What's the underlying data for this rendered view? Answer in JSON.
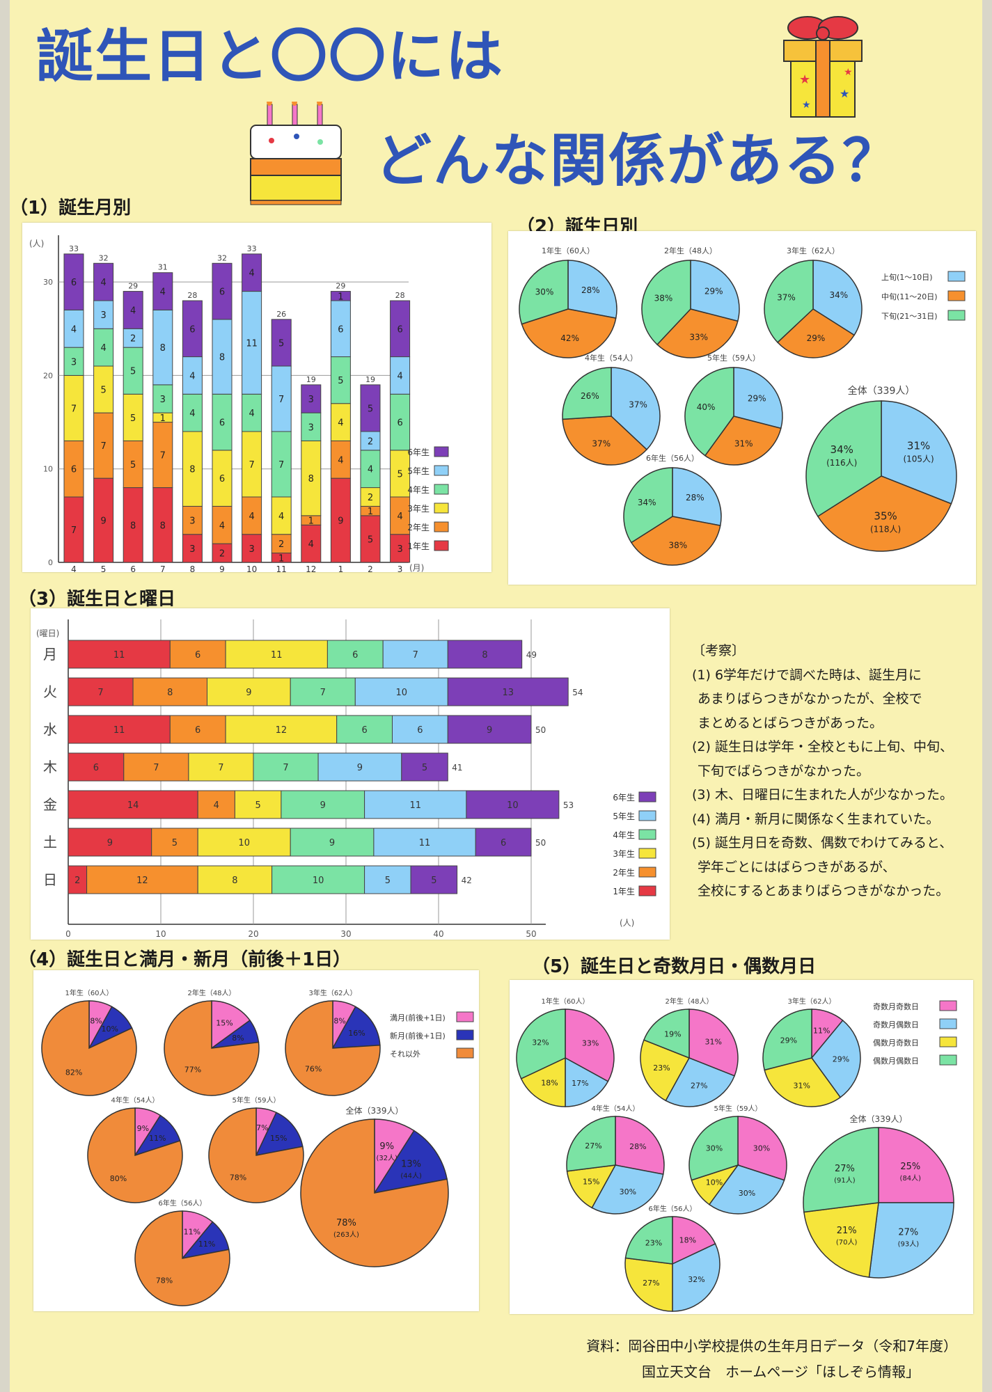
{
  "title": {
    "line1": "誕生日と〇〇には",
    "line2": "どんな関係がある？"
  },
  "colors": {
    "g1": "#e53944",
    "g2": "#f6902e",
    "g3": "#f6e53b",
    "g4": "#7be3a4",
    "g5": "#8fd0f7",
    "g6": "#7d3fb7",
    "early": "#8fd0f7",
    "mid": "#f6902e",
    "late": "#7be3a4",
    "fullmoon": "#f576c8",
    "newmoon": "#2a34b8",
    "other": "#f08b3a",
    "oddodd": "#f576c8",
    "oddeven": "#8fd0f7",
    "evenodd": "#f6e53b",
    "eveneven": "#7be3a4"
  },
  "sections": {
    "s1": "（1）誕生月別",
    "s2": "（2）誕生日別",
    "s3": "（3）誕生日と曜日",
    "s4": "（4）誕生日と満月・新月（前後＋1日）",
    "s5": "（5）誕生日と奇数月日・偶数月日"
  },
  "chart_data": [
    {
      "id": "month",
      "type": "bar",
      "stacked": true,
      "ylabel": "(人)",
      "xunit": "(月)",
      "ylim": [
        0,
        35
      ],
      "yticks": [
        0,
        10,
        20,
        30
      ],
      "categories": [
        "4",
        "5",
        "6",
        "7",
        "8",
        "9",
        "10",
        "11",
        "12",
        "1",
        "2",
        "3"
      ],
      "series": [
        {
          "name": "1年生",
          "values": [
            7,
            9,
            8,
            8,
            3,
            2,
            3,
            1,
            4,
            9,
            5,
            3
          ]
        },
        {
          "name": "2年生",
          "values": [
            6,
            7,
            5,
            7,
            3,
            4,
            4,
            2,
            1,
            4,
            1,
            4
          ]
        },
        {
          "name": "3年生",
          "values": [
            7,
            5,
            5,
            1,
            8,
            6,
            7,
            4,
            8,
            4,
            2,
            5
          ]
        },
        {
          "name": "4年生",
          "values": [
            3,
            4,
            5,
            3,
            4,
            6,
            4,
            7,
            3,
            5,
            4,
            6
          ]
        },
        {
          "name": "5年生",
          "values": [
            4,
            3,
            2,
            8,
            4,
            8,
            11,
            7,
            0,
            6,
            2,
            4
          ]
        },
        {
          "name": "6年生",
          "values": [
            6,
            4,
            4,
            4,
            6,
            6,
            4,
            5,
            3,
            1,
            5,
            6
          ]
        }
      ],
      "totals": [
        33,
        32,
        29,
        31,
        28,
        32,
        33,
        26,
        19,
        29,
        19,
        28
      ],
      "legend": "right"
    },
    {
      "id": "period",
      "type": "pie",
      "legend": [
        "上旬(1〜10日)",
        "中旬(11〜20日)",
        "下旬(21〜31日)"
      ],
      "pies": [
        {
          "title": "1年生（60人）",
          "values": [
            28,
            42,
            30
          ],
          "labels": [
            "28%",
            "42%",
            "30%"
          ]
        },
        {
          "title": "2年生（48人）",
          "values": [
            29,
            33,
            38
          ],
          "labels": [
            "29%",
            "33%",
            "38%"
          ]
        },
        {
          "title": "3年生（62人）",
          "values": [
            34,
            29,
            37
          ],
          "labels": [
            "34%",
            "29%",
            "37%"
          ]
        },
        {
          "title": "4年生（54人）",
          "values": [
            37,
            37,
            26
          ],
          "labels": [
            "37%",
            "37%",
            "26%"
          ]
        },
        {
          "title": "5年生（59人）",
          "values": [
            29,
            31,
            40
          ],
          "labels": [
            "29%",
            "31%",
            "40%"
          ]
        },
        {
          "title": "6年生（56人）",
          "values": [
            28,
            38,
            34
          ],
          "labels": [
            "28%",
            "38%",
            "34%"
          ]
        },
        {
          "title": "全体（339人）",
          "values": [
            31,
            35,
            34
          ],
          "labels": [
            "31%",
            "35%",
            "34%"
          ],
          "sublabels": [
            "(105人)",
            "(118人)",
            "(116人)"
          ]
        }
      ]
    },
    {
      "id": "weekday",
      "type": "bar",
      "orientation": "horizontal",
      "stacked": true,
      "ylabel": "(曜日)",
      "xunit": "(人)",
      "xlim": [
        0,
        60
      ],
      "xticks": [
        0,
        10,
        20,
        30,
        40,
        50
      ],
      "categories": [
        "月",
        "火",
        "水",
        "木",
        "金",
        "土",
        "日"
      ],
      "series": [
        {
          "name": "1年生",
          "values": [
            11,
            7,
            11,
            6,
            14,
            9,
            2
          ]
        },
        {
          "name": "2年生",
          "values": [
            6,
            8,
            6,
            7,
            4,
            5,
            12
          ]
        },
        {
          "name": "3年生",
          "values": [
            11,
            9,
            12,
            7,
            5,
            10,
            8
          ]
        },
        {
          "name": "4年生",
          "values": [
            6,
            7,
            6,
            7,
            9,
            9,
            10
          ]
        },
        {
          "name": "5年生",
          "values": [
            7,
            10,
            6,
            9,
            11,
            11,
            5
          ]
        },
        {
          "name": "6年生",
          "values": [
            8,
            13,
            9,
            5,
            10,
            6,
            5
          ]
        }
      ],
      "totals": [
        49,
        54,
        50,
        41,
        53,
        50,
        42
      ],
      "legend": "right"
    },
    {
      "id": "moon",
      "type": "pie",
      "legend": [
        "満月(前後+1日)",
        "新月(前後+1日)",
        "それ以外"
      ],
      "pies": [
        {
          "title": "1年生（60人）",
          "values": [
            8,
            10,
            82
          ],
          "labels": [
            "8%",
            "10%",
            "82%"
          ]
        },
        {
          "title": "2年生（48人）",
          "values": [
            15,
            8,
            77
          ],
          "labels": [
            "15%",
            "8%",
            "77%"
          ]
        },
        {
          "title": "3年生（62人）",
          "values": [
            8,
            16,
            76
          ],
          "labels": [
            "8%",
            "16%",
            "76%"
          ]
        },
        {
          "title": "4年生（54人）",
          "values": [
            9,
            11,
            80
          ],
          "labels": [
            "9%",
            "11%",
            "80%"
          ]
        },
        {
          "title": "5年生（59人）",
          "values": [
            7,
            15,
            78
          ],
          "labels": [
            "7%",
            "15%",
            "78%"
          ]
        },
        {
          "title": "6年生（56人）",
          "values": [
            11,
            11,
            78
          ],
          "labels": [
            "11%",
            "11%",
            "78%"
          ]
        },
        {
          "title": "全体（339人）",
          "values": [
            9,
            13,
            78
          ],
          "labels": [
            "9%",
            "13%",
            "78%"
          ],
          "sublabels": [
            "(32人)",
            "(44人)",
            "(263人)"
          ]
        }
      ]
    },
    {
      "id": "oddeven",
      "type": "pie",
      "legend": [
        "奇数月奇数日",
        "奇数月偶数日",
        "偶数月奇数日",
        "偶数月偶数日"
      ],
      "pies": [
        {
          "title": "1年生（60人）",
          "values": [
            33,
            17,
            18,
            32
          ],
          "labels": [
            "33%",
            "17%",
            "18%",
            "32%"
          ]
        },
        {
          "title": "2年生（48人）",
          "values": [
            31,
            27,
            23,
            19
          ],
          "labels": [
            "31%",
            "27%",
            "23%",
            "19%"
          ]
        },
        {
          "title": "3年生（62人）",
          "values": [
            11,
            29,
            31,
            29
          ],
          "labels": [
            "11%",
            "29%",
            "31%",
            "29%"
          ]
        },
        {
          "title": "4年生（54人）",
          "values": [
            28,
            30,
            15,
            27
          ],
          "labels": [
            "28%",
            "30%",
            "15%",
            "27%"
          ]
        },
        {
          "title": "5年生（59人）",
          "values": [
            30,
            30,
            10,
            30
          ],
          "labels": [
            "30%",
            "30%",
            "10%",
            "30%"
          ]
        },
        {
          "title": "6年生（56人）",
          "values": [
            18,
            32,
            27,
            23
          ],
          "labels": [
            "18%",
            "32%",
            "27%",
            "23%"
          ]
        },
        {
          "title": "全体（339人）",
          "values": [
            25,
            27,
            21,
            27
          ],
          "labels": [
            "25%",
            "27%",
            "21%",
            "27%"
          ],
          "sublabels": [
            "(84人)",
            "(93人)",
            "(70人)",
            "(91人)"
          ]
        }
      ]
    }
  ],
  "notes": {
    "heading": "〔考察〕",
    "lines": [
      "(1) 6学年だけで調べた時は、誕生月に",
      "あまりばらつきがなかったが、全校で",
      "まとめるとばらつきがあった。",
      "(2) 誕生日は学年・全校ともに上旬、中旬、",
      "下旬でばらつきがなかった。",
      "(3) 木、日曜日に生まれた人が少なかった。",
      "(4) 満月・新月に関係なく生まれていた。",
      "(5) 誕生月日を奇数、偶数でわけてみると、",
      "学年ごとにはばらつきがあるが、",
      "全校にするとあまりばらつきがなかった。"
    ]
  },
  "source": {
    "line1": "資料：岡谷田中小学校提供の生年月日データ（令和7年度）",
    "line2": "国立天文台　ホームページ「ほしぞら情報」"
  }
}
